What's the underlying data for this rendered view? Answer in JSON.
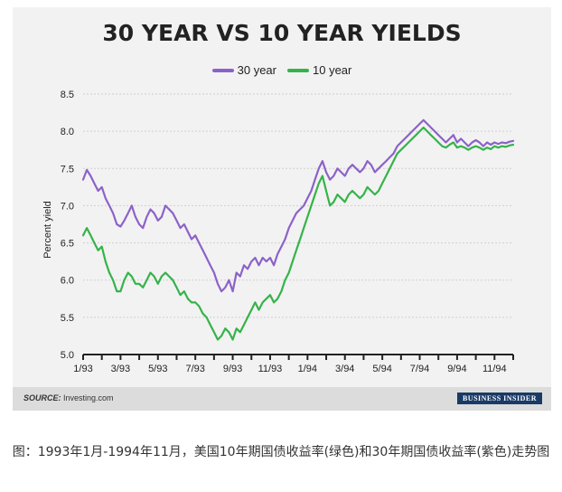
{
  "chart_data": {
    "type": "line",
    "title": "30 YEAR VS 10 YEAR YIELDS",
    "ylabel": "Percent yield",
    "xlabel": "",
    "ylim": [
      5.0,
      8.5
    ],
    "yticks": [
      "5.0",
      "5.5",
      "6.0",
      "6.5",
      "7.0",
      "7.5",
      "8.0",
      "8.5"
    ],
    "xlim": [
      0,
      23
    ],
    "xticks": [
      {
        "value": 0,
        "label": "1/93"
      },
      {
        "value": 2,
        "label": "3/93"
      },
      {
        "value": 4,
        "label": "5/93"
      },
      {
        "value": 6,
        "label": "7/93"
      },
      {
        "value": 8,
        "label": "9/93"
      },
      {
        "value": 10,
        "label": "11/93"
      },
      {
        "value": 12,
        "label": "1/94"
      },
      {
        "value": 14,
        "label": "3/94"
      },
      {
        "value": 16,
        "label": "5/94"
      },
      {
        "value": 18,
        "label": "7/94"
      },
      {
        "value": 20,
        "label": "9/94"
      },
      {
        "value": 22,
        "label": "11/94"
      }
    ],
    "grid": "horizontal",
    "legend_position": "top-center",
    "series": [
      {
        "name": "30 year",
        "color": "#8c62c9",
        "x": [
          0,
          0.2,
          0.4,
          0.6,
          0.8,
          1.0,
          1.2,
          1.4,
          1.6,
          1.8,
          2.0,
          2.2,
          2.4,
          2.6,
          2.8,
          3.0,
          3.2,
          3.4,
          3.6,
          3.8,
          4.0,
          4.2,
          4.4,
          4.6,
          4.8,
          5.0,
          5.2,
          5.4,
          5.6,
          5.8,
          6.0,
          6.2,
          6.4,
          6.6,
          6.8,
          7.0,
          7.2,
          7.4,
          7.6,
          7.8,
          8.0,
          8.2,
          8.4,
          8.6,
          8.8,
          9.0,
          9.2,
          9.4,
          9.6,
          9.8,
          10.0,
          10.2,
          10.4,
          10.6,
          10.8,
          11.0,
          11.2,
          11.4,
          11.6,
          11.8,
          12.0,
          12.2,
          12.4,
          12.6,
          12.8,
          13.0,
          13.2,
          13.4,
          13.6,
          13.8,
          14.0,
          14.2,
          14.4,
          14.6,
          14.8,
          15.0,
          15.2,
          15.4,
          15.6,
          15.8,
          16.0,
          16.2,
          16.4,
          16.6,
          16.8,
          17.0,
          17.2,
          17.4,
          17.6,
          17.8,
          18.0,
          18.2,
          18.4,
          18.6,
          18.8,
          19.0,
          19.2,
          19.4,
          19.6,
          19.8,
          20.0,
          20.2,
          20.4,
          20.6,
          20.8,
          21.0,
          21.2,
          21.4,
          21.6,
          21.8,
          22.0,
          22.2,
          22.4,
          22.6,
          22.8,
          23.0
        ],
        "values": [
          7.35,
          7.48,
          7.4,
          7.3,
          7.2,
          7.25,
          7.1,
          7.0,
          6.9,
          6.75,
          6.72,
          6.8,
          6.9,
          7.0,
          6.85,
          6.75,
          6.7,
          6.85,
          6.95,
          6.9,
          6.8,
          6.85,
          7.0,
          6.95,
          6.9,
          6.8,
          6.7,
          6.75,
          6.65,
          6.55,
          6.6,
          6.5,
          6.4,
          6.3,
          6.2,
          6.1,
          5.95,
          5.85,
          5.9,
          6.0,
          5.85,
          6.1,
          6.05,
          6.2,
          6.15,
          6.25,
          6.3,
          6.2,
          6.3,
          6.25,
          6.3,
          6.2,
          6.35,
          6.45,
          6.55,
          6.7,
          6.8,
          6.9,
          6.95,
          7.0,
          7.1,
          7.2,
          7.35,
          7.5,
          7.6,
          7.45,
          7.35,
          7.4,
          7.5,
          7.45,
          7.4,
          7.5,
          7.55,
          7.5,
          7.45,
          7.5,
          7.6,
          7.55,
          7.45,
          7.5,
          7.55,
          7.6,
          7.65,
          7.7,
          7.8,
          7.85,
          7.9,
          7.95,
          8.0,
          8.05,
          8.1,
          8.15,
          8.1,
          8.05,
          8.0,
          7.95,
          7.9,
          7.85,
          7.9,
          7.95,
          7.85,
          7.9,
          7.85,
          7.8,
          7.85,
          7.88,
          7.85,
          7.8,
          7.85,
          7.82,
          7.85,
          7.83,
          7.85,
          7.84,
          7.86,
          7.87
        ]
      },
      {
        "name": "10 year",
        "color": "#35b34a",
        "x": [
          0,
          0.2,
          0.4,
          0.6,
          0.8,
          1.0,
          1.2,
          1.4,
          1.6,
          1.8,
          2.0,
          2.2,
          2.4,
          2.6,
          2.8,
          3.0,
          3.2,
          3.4,
          3.6,
          3.8,
          4.0,
          4.2,
          4.4,
          4.6,
          4.8,
          5.0,
          5.2,
          5.4,
          5.6,
          5.8,
          6.0,
          6.2,
          6.4,
          6.6,
          6.8,
          7.0,
          7.2,
          7.4,
          7.6,
          7.8,
          8.0,
          8.2,
          8.4,
          8.6,
          8.8,
          9.0,
          9.2,
          9.4,
          9.6,
          9.8,
          10.0,
          10.2,
          10.4,
          10.6,
          10.8,
          11.0,
          11.2,
          11.4,
          11.6,
          11.8,
          12.0,
          12.2,
          12.4,
          12.6,
          12.8,
          13.0,
          13.2,
          13.4,
          13.6,
          13.8,
          14.0,
          14.2,
          14.4,
          14.6,
          14.8,
          15.0,
          15.2,
          15.4,
          15.6,
          15.8,
          16.0,
          16.2,
          16.4,
          16.6,
          16.8,
          17.0,
          17.2,
          17.4,
          17.6,
          17.8,
          18.0,
          18.2,
          18.4,
          18.6,
          18.8,
          19.0,
          19.2,
          19.4,
          19.6,
          19.8,
          20.0,
          20.2,
          20.4,
          20.6,
          20.8,
          21.0,
          21.2,
          21.4,
          21.6,
          21.8,
          22.0,
          22.2,
          22.4,
          22.6,
          22.8,
          23.0
        ],
        "values": [
          6.6,
          6.7,
          6.6,
          6.5,
          6.4,
          6.45,
          6.25,
          6.1,
          6.0,
          5.85,
          5.85,
          6.0,
          6.1,
          6.05,
          5.95,
          5.95,
          5.9,
          6.0,
          6.1,
          6.05,
          5.95,
          6.05,
          6.1,
          6.05,
          6.0,
          5.9,
          5.8,
          5.85,
          5.75,
          5.7,
          5.7,
          5.65,
          5.55,
          5.5,
          5.4,
          5.3,
          5.2,
          5.25,
          5.35,
          5.3,
          5.2,
          5.35,
          5.3,
          5.4,
          5.5,
          5.6,
          5.7,
          5.6,
          5.7,
          5.75,
          5.8,
          5.7,
          5.75,
          5.85,
          6.0,
          6.1,
          6.25,
          6.4,
          6.55,
          6.7,
          6.85,
          7.0,
          7.15,
          7.3,
          7.4,
          7.2,
          7.0,
          7.05,
          7.15,
          7.1,
          7.05,
          7.15,
          7.2,
          7.15,
          7.1,
          7.15,
          7.25,
          7.2,
          7.15,
          7.2,
          7.3,
          7.4,
          7.5,
          7.6,
          7.7,
          7.75,
          7.8,
          7.85,
          7.9,
          7.95,
          8.0,
          8.05,
          8.0,
          7.95,
          7.9,
          7.85,
          7.8,
          7.78,
          7.82,
          7.85,
          7.78,
          7.8,
          7.78,
          7.75,
          7.78,
          7.8,
          7.78,
          7.75,
          7.78,
          7.76,
          7.8,
          7.78,
          7.8,
          7.79,
          7.81,
          7.82
        ]
      }
    ]
  },
  "source": {
    "label": "SOURCE:",
    "text": "Investing.com"
  },
  "logo_text": "BUSINESS INSIDER",
  "caption": "图：1993年1月-1994年11月，美国10年期国债收益率(绿色)和30年期国债收益率(紫色)走势图"
}
